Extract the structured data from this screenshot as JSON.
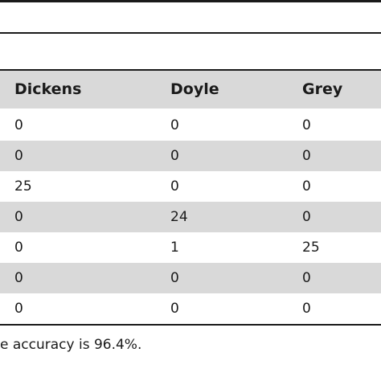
{
  "table": {
    "columns": [
      "Dickens",
      "Doyle",
      "Grey"
    ],
    "rows": [
      [
        "0",
        "0",
        "0"
      ],
      [
        "0",
        "0",
        "0"
      ],
      [
        "25",
        "0",
        "0"
      ],
      [
        "0",
        "24",
        "0"
      ],
      [
        "0",
        "1",
        "25"
      ],
      [
        "0",
        "0",
        "0"
      ],
      [
        "0",
        "0",
        "0"
      ]
    ]
  },
  "footnote": "e accuracy is 96.4%."
}
